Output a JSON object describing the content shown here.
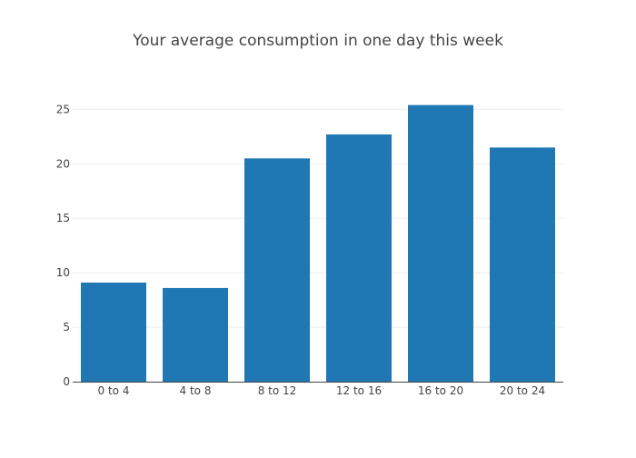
{
  "chart_data": {
    "type": "bar",
    "title": "Your average consumption in one day this week",
    "xlabel": "",
    "ylabel": "",
    "categories": [
      "0 to 4",
      "4 to 8",
      "8 to 12",
      "12 to 16",
      "16 to 20",
      "20 to 24"
    ],
    "values": [
      9.1,
      8.6,
      20.5,
      22.7,
      25.4,
      21.5
    ],
    "ylim": [
      0,
      26.7
    ],
    "yticks": [
      0,
      5,
      10,
      15,
      20,
      25
    ],
    "grid": true,
    "legend": "none",
    "bar_color": "#1f77b4"
  }
}
